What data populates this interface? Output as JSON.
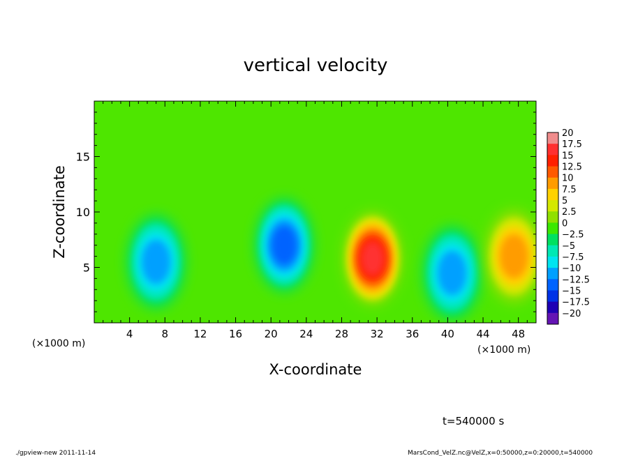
{
  "chart_data": {
    "type": "heatmap",
    "title": "vertical velocity",
    "xlabel": "X-coordinate",
    "ylabel": "Z-coordinate",
    "x_unit_label": "(×1000 m)",
    "x_unit_label_right": "(×1000 m)",
    "xlim": [
      0,
      50
    ],
    "ylim": [
      0,
      20
    ],
    "x_ticks": [
      4,
      8,
      12,
      16,
      20,
      24,
      28,
      32,
      36,
      40,
      44,
      48
    ],
    "x_tick_labels": [
      "4",
      "8",
      "12",
      "16",
      "20",
      "24",
      "28",
      "32",
      "36",
      "40",
      "44",
      "48"
    ],
    "y_ticks": [
      5,
      10,
      15
    ],
    "y_tick_labels": [
      "5",
      "10",
      "15"
    ],
    "colorbar": {
      "levels": [
        20,
        17.5,
        15,
        12.5,
        10,
        7.5,
        5,
        2.5,
        0,
        -2.5,
        -5,
        -7.5,
        -10,
        -12.5,
        -15,
        -17.5,
        -20
      ],
      "labels": [
        "20",
        "17.5",
        "15",
        "12.5",
        "10",
        "7.5",
        "5",
        "2.5",
        "0",
        "−2.5",
        "−5",
        "−7.5",
        "−10",
        "−12.5",
        "−15",
        "−17.5",
        "−20"
      ],
      "colors": [
        "#f08c8c",
        "#ff3030",
        "#ff2000",
        "#ff5a00",
        "#ff9c00",
        "#ffd200",
        "#d4e800",
        "#90e000",
        "#3ce800",
        "#00e060",
        "#00e8b4",
        "#00e4f0",
        "#00a0ff",
        "#0064ff",
        "#0032e6",
        "#1e00b4",
        "#6414b4"
      ]
    },
    "features": [
      {
        "x": 7.0,
        "z": 5.5,
        "w": -9
      },
      {
        "x": 21.5,
        "z": 7.0,
        "w": -11
      },
      {
        "x": 31.5,
        "z": 5.8,
        "w": 16
      },
      {
        "x": 40.5,
        "z": 4.5,
        "w": -8
      },
      {
        "x": 47.5,
        "z": 6.0,
        "w": 10
      }
    ]
  },
  "annotations": {
    "time": "t=540000 s",
    "footer_left": "./gpview-new  2011-11-14",
    "footer_right": "MarsCond_VelZ.nc@VelZ,x=0:50000,z=0:20000,t=540000"
  }
}
